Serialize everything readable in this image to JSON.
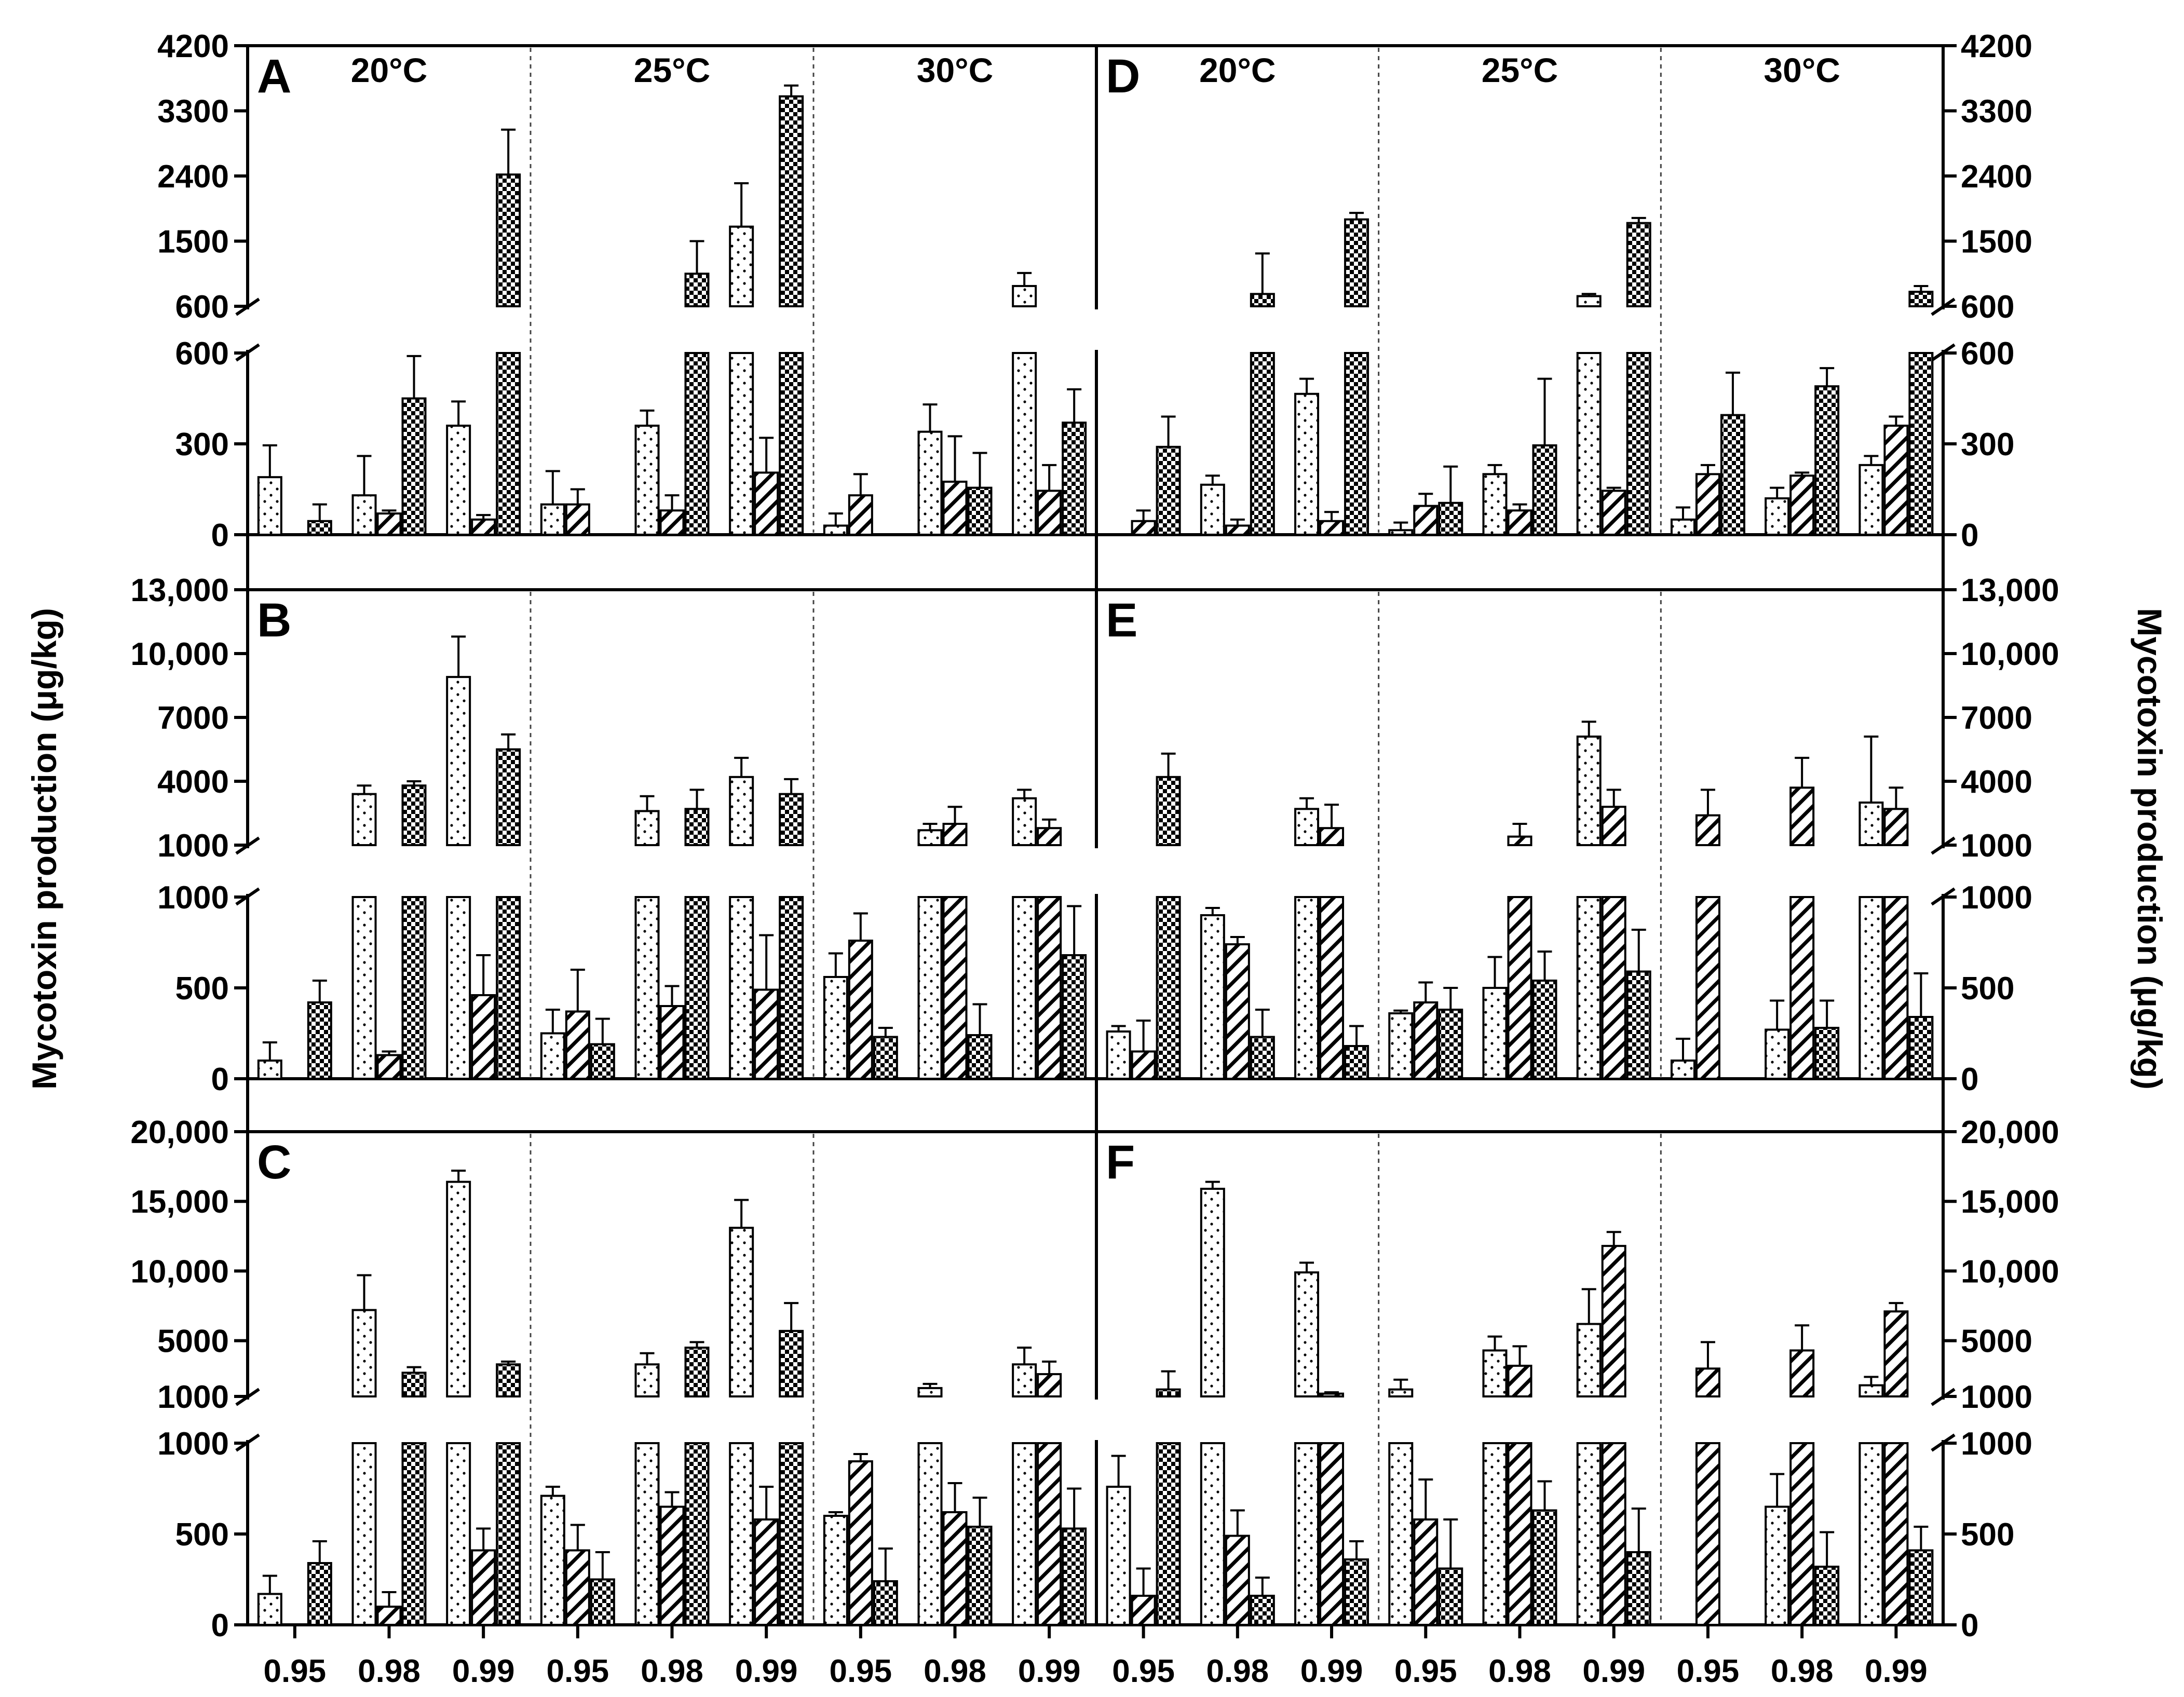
{
  "chart_data": {
    "type": "bar",
    "ylabel_left": "Mycotoxin production (μg/kg)",
    "ylabel_right": "Mycotoxin production (μg/kg)",
    "temperatures": [
      "20°C",
      "25°C",
      "30°C"
    ],
    "water_activity_ticks": [
      "0.95",
      "0.98",
      "0.99"
    ],
    "series_patterns": [
      "dotted",
      "hatched",
      "checkered"
    ],
    "rows": [
      {
        "top_ticks": [
          "4200",
          "3300",
          "2400",
          "1500",
          "600"
        ],
        "top_range": [
          600,
          4200
        ],
        "bottom_ticks": [
          "600",
          "300",
          "0"
        ],
        "bottom_range": [
          0,
          600
        ],
        "panels": [
          {
            "letter": "A",
            "groups": [
              [
                {
                  "v": 190,
                  "e": 105
                },
                null,
                {
                  "v": 45,
                  "e": 55
                }
              ],
              [
                {
                  "v": 130,
                  "e": 130
                },
                {
                  "v": 70,
                  "e": 10
                },
                {
                  "v": 450,
                  "e": 140
                }
              ],
              [
                {
                  "v": 360,
                  "e": 80
                },
                {
                  "v": 50,
                  "e": 15
                },
                {
                  "v": 2420,
                  "e": 620
                }
              ],
              [
                {
                  "v": 100,
                  "e": 110
                },
                {
                  "v": 100,
                  "e": 50
                },
                null
              ],
              [
                {
                  "v": 360,
                  "e": 50
                },
                {
                  "v": 80,
                  "e": 50
                },
                {
                  "v": 1050,
                  "e": 450
                }
              ],
              [
                {
                  "v": 1700,
                  "e": 600
                },
                {
                  "v": 205,
                  "e": 115
                },
                {
                  "v": 3500,
                  "e": 150
                }
              ],
              [
                {
                  "v": 30,
                  "e": 40
                },
                {
                  "v": 130,
                  "e": 70
                },
                null
              ],
              [
                {
                  "v": 340,
                  "e": 90
                },
                {
                  "v": 175,
                  "e": 150
                },
                {
                  "v": 155,
                  "e": 115
                }
              ],
              [
                {
                  "v": 880,
                  "e": 180
                },
                {
                  "v": 145,
                  "e": 85
                },
                {
                  "v": 370,
                  "e": 110
                }
              ]
            ]
          },
          {
            "letter": "D",
            "groups": [
              [
                null,
                {
                  "v": 45,
                  "e": 35
                },
                {
                  "v": 290,
                  "e": 100
                }
              ],
              [
                {
                  "v": 165,
                  "e": 30
                },
                {
                  "v": 30,
                  "e": 20
                },
                {
                  "v": 770,
                  "e": 560
                }
              ],
              [
                {
                  "v": 465,
                  "e": 50
                },
                {
                  "v": 45,
                  "e": 30
                },
                {
                  "v": 1800,
                  "e": 90
                }
              ],
              [
                {
                  "v": 15,
                  "e": 25
                },
                {
                  "v": 95,
                  "e": 40
                },
                {
                  "v": 105,
                  "e": 120
                }
              ],
              [
                {
                  "v": 200,
                  "e": 30
                },
                {
                  "v": 80,
                  "e": 20
                },
                {
                  "v": 295,
                  "e": 220
                }
              ],
              [
                {
                  "v": 740,
                  "e": 30
                },
                {
                  "v": 145,
                  "e": 10
                },
                {
                  "v": 1750,
                  "e": 70
                }
              ],
              [
                {
                  "v": 50,
                  "e": 40
                },
                {
                  "v": 200,
                  "e": 30
                },
                {
                  "v": 395,
                  "e": 140
                }
              ],
              [
                {
                  "v": 120,
                  "e": 35
                },
                {
                  "v": 195,
                  "e": 10
                },
                {
                  "v": 490,
                  "e": 60
                }
              ],
              [
                {
                  "v": 230,
                  "e": 30
                },
                {
                  "v": 360,
                  "e": 30
                },
                {
                  "v": 800,
                  "e": 80
                }
              ]
            ]
          }
        ]
      },
      {
        "top_ticks": [
          "13,000",
          "10,000",
          "7000",
          "4000",
          "1000"
        ],
        "top_range": [
          1000,
          13000
        ],
        "bottom_ticks": [
          "1000",
          "500",
          "0"
        ],
        "bottom_range": [
          0,
          1000
        ],
        "panels": [
          {
            "letter": "B",
            "groups": [
              [
                {
                  "v": 100,
                  "e": 100
                },
                null,
                {
                  "v": 420,
                  "e": 120
                }
              ],
              [
                {
                  "v": 3400,
                  "e": 400
                },
                {
                  "v": 130,
                  "e": 20
                },
                {
                  "v": 3800,
                  "e": 200
                }
              ],
              [
                {
                  "v": 8900,
                  "e": 1900
                },
                {
                  "v": 460,
                  "e": 220
                },
                {
                  "v": 5500,
                  "e": 700
                }
              ],
              [
                {
                  "v": 250,
                  "e": 130
                },
                {
                  "v": 370,
                  "e": 230
                },
                {
                  "v": 190,
                  "e": 140
                }
              ],
              [
                {
                  "v": 2600,
                  "e": 700
                },
                {
                  "v": 400,
                  "e": 110
                },
                {
                  "v": 2700,
                  "e": 900
                }
              ],
              [
                {
                  "v": 4200,
                  "e": 900
                },
                {
                  "v": 490,
                  "e": 300
                },
                {
                  "v": 3400,
                  "e": 700
                }
              ],
              [
                {
                  "v": 560,
                  "e": 130
                },
                {
                  "v": 760,
                  "e": 150
                },
                {
                  "v": 230,
                  "e": 50
                }
              ],
              [
                {
                  "v": 1700,
                  "e": 300
                },
                {
                  "v": 2000,
                  "e": 800
                },
                {
                  "v": 240,
                  "e": 170
                }
              ],
              [
                {
                  "v": 3200,
                  "e": 400
                },
                {
                  "v": 1800,
                  "e": 400
                },
                {
                  "v": 680,
                  "e": 270
                }
              ]
            ]
          },
          {
            "letter": "E",
            "groups": [
              [
                {
                  "v": 260,
                  "e": 30
                },
                {
                  "v": 150,
                  "e": 170
                },
                {
                  "v": 4200,
                  "e": 1100
                }
              ],
              [
                {
                  "v": 900,
                  "e": 40
                },
                {
                  "v": 740,
                  "e": 40
                },
                {
                  "v": 230,
                  "e": 150
                }
              ],
              [
                {
                  "v": 2700,
                  "e": 500
                },
                {
                  "v": 1800,
                  "e": 1100
                },
                {
                  "v": 180,
                  "e": 110
                }
              ],
              [
                {
                  "v": 360,
                  "e": 15
                },
                {
                  "v": 420,
                  "e": 110
                },
                {
                  "v": 380,
                  "e": 120
                }
              ],
              [
                {
                  "v": 500,
                  "e": 170
                },
                {
                  "v": 1400,
                  "e": 600
                },
                {
                  "v": 540,
                  "e": 160
                }
              ],
              [
                {
                  "v": 6100,
                  "e": 700
                },
                {
                  "v": 2800,
                  "e": 800
                },
                {
                  "v": 590,
                  "e": 230
                }
              ],
              [
                {
                  "v": 100,
                  "e": 120
                },
                {
                  "v": 2400,
                  "e": 1200
                },
                null
              ],
              [
                {
                  "v": 270,
                  "e": 160
                },
                {
                  "v": 3700,
                  "e": 1400
                },
                {
                  "v": 280,
                  "e": 150
                }
              ],
              [
                {
                  "v": 3000,
                  "e": 3100
                },
                {
                  "v": 2700,
                  "e": 1000
                },
                {
                  "v": 340,
                  "e": 240
                }
              ]
            ]
          }
        ]
      },
      {
        "top_ticks": [
          "20,000",
          "15,000",
          "10,000",
          "5000",
          "1000"
        ],
        "top_range": [
          1000,
          20000
        ],
        "bottom_ticks": [
          "1000",
          "500",
          "0"
        ],
        "bottom_range": [
          0,
          1000
        ],
        "panels": [
          {
            "letter": "C",
            "groups": [
              [
                {
                  "v": 170,
                  "e": 100
                },
                null,
                {
                  "v": 340,
                  "e": 120
                }
              ],
              [
                {
                  "v": 7200,
                  "e": 2500
                },
                {
                  "v": 100,
                  "e": 80
                },
                {
                  "v": 2700,
                  "e": 400
                }
              ],
              [
                {
                  "v": 16400,
                  "e": 800
                },
                {
                  "v": 410,
                  "e": 120
                },
                {
                  "v": 3300,
                  "e": 200
                }
              ],
              [
                {
                  "v": 710,
                  "e": 50
                },
                {
                  "v": 410,
                  "e": 140
                },
                {
                  "v": 250,
                  "e": 150
                }
              ],
              [
                {
                  "v": 3300,
                  "e": 800
                },
                {
                  "v": 650,
                  "e": 80
                },
                {
                  "v": 4500,
                  "e": 400
                }
              ],
              [
                {
                  "v": 13100,
                  "e": 2000
                },
                {
                  "v": 580,
                  "e": 180
                },
                {
                  "v": 5700,
                  "e": 2000
                }
              ],
              [
                {
                  "v": 600,
                  "e": 20
                },
                {
                  "v": 900,
                  "e": 40
                },
                {
                  "v": 240,
                  "e": 180
                }
              ],
              [
                {
                  "v": 1600,
                  "e": 300
                },
                {
                  "v": 620,
                  "e": 160
                },
                {
                  "v": 540,
                  "e": 160
                }
              ],
              [
                {
                  "v": 3300,
                  "e": 1200
                },
                {
                  "v": 2600,
                  "e": 900
                },
                {
                  "v": 530,
                  "e": 220
                }
              ]
            ]
          },
          {
            "letter": "F",
            "groups": [
              [
                {
                  "v": 760,
                  "e": 170
                },
                {
                  "v": 160,
                  "e": 150
                },
                {
                  "v": 1500,
                  "e": 1300
                }
              ],
              [
                {
                  "v": 15900,
                  "e": 500
                },
                {
                  "v": 490,
                  "e": 140
                },
                {
                  "v": 160,
                  "e": 100
                }
              ],
              [
                {
                  "v": 9900,
                  "e": 700
                },
                {
                  "v": 1200,
                  "e": 100
                },
                {
                  "v": 360,
                  "e": 100
                }
              ],
              [
                {
                  "v": 1500,
                  "e": 700
                },
                {
                  "v": 580,
                  "e": 220
                },
                {
                  "v": 310,
                  "e": 270
                }
              ],
              [
                {
                  "v": 4300,
                  "e": 1000
                },
                {
                  "v": 3200,
                  "e": 1400
                },
                {
                  "v": 630,
                  "e": 160
                }
              ],
              [
                {
                  "v": 6200,
                  "e": 2500
                },
                {
                  "v": 11800,
                  "e": 1000
                },
                {
                  "v": 400,
                  "e": 240
                }
              ],
              [
                null,
                {
                  "v": 3000,
                  "e": 1900
                },
                null
              ],
              [
                {
                  "v": 650,
                  "e": 180
                },
                {
                  "v": 4300,
                  "e": 1800
                },
                {
                  "v": 320,
                  "e": 190
                }
              ],
              [
                {
                  "v": 1800,
                  "e": 600
                },
                {
                  "v": 7100,
                  "e": 600
                },
                {
                  "v": 410,
                  "e": 130
                }
              ]
            ]
          }
        ]
      }
    ]
  }
}
